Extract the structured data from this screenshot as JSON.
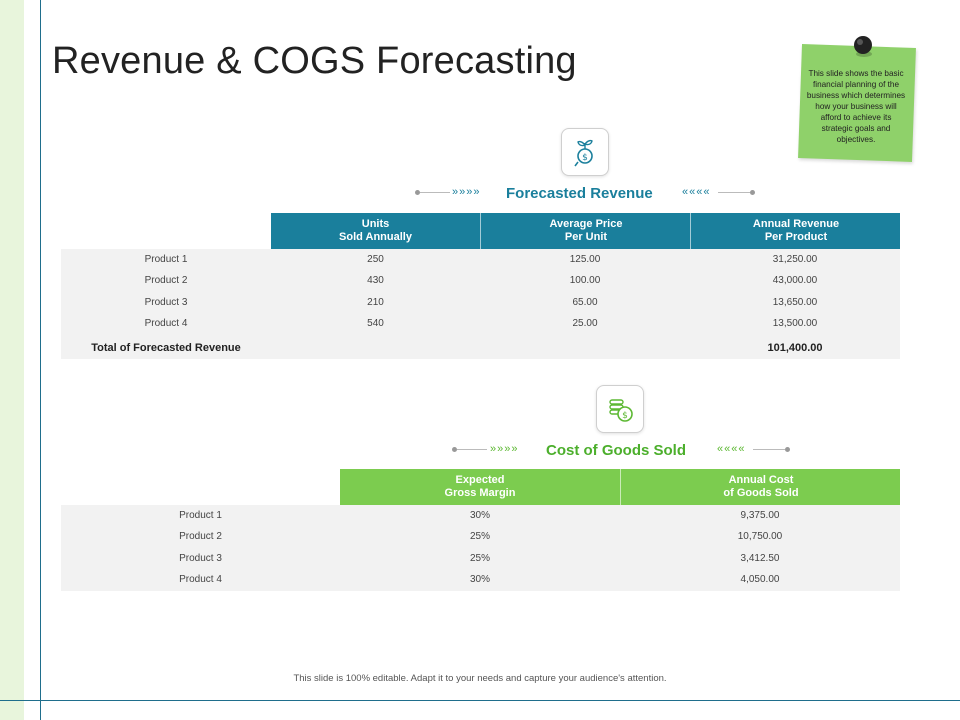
{
  "title": "Revenue & COGS Forecasting",
  "note": {
    "text": "This slide shows the basic financial planning of the business which determines how your business will afford to achieve its strategic goals and objectives.",
    "color": "#8fd16a"
  },
  "revenue": {
    "heading": "Forecasted Revenue",
    "icon": "money-plant-icon",
    "accent": "#1a7f9c",
    "arrows_left": "»»»»",
    "arrows_right": "««««",
    "columns": [
      "Units\nSold Annually",
      "Average Price\nPer Unit",
      "Annual Revenue\nPer Product"
    ],
    "rows": [
      {
        "product": "Product 1",
        "units": "250",
        "price": "125.00",
        "revenue": "31,250.00"
      },
      {
        "product": "Product 2",
        "units": "430",
        "price": "100.00",
        "revenue": "43,000.00"
      },
      {
        "product": "Product 3",
        "units": "210",
        "price": "65.00",
        "revenue": "13,650.00"
      },
      {
        "product": "Product 4",
        "units": "540",
        "price": "25.00",
        "revenue": "13,500.00"
      }
    ],
    "total_label": "Total of Forecasted Revenue",
    "total_value": "101,400.00"
  },
  "cogs": {
    "heading": "Cost of Goods Sold",
    "icon": "coins-icon",
    "accent": "#7ccc4f",
    "heading_color": "#4caf2c",
    "arrows_left": "»»»»",
    "arrows_right": "««««",
    "columns": [
      "Expected\nGross Margin",
      "Annual Cost\nof Goods Sold"
    ],
    "rows": [
      {
        "product": "Product 1",
        "margin": "30%",
        "cost": "9,375.00"
      },
      {
        "product": "Product 2",
        "margin": "25%",
        "cost": "10,750.00"
      },
      {
        "product": "Product 3",
        "margin": "25%",
        "cost": "3,412.50"
      },
      {
        "product": "Product 4",
        "margin": "30%",
        "cost": "4,050.00"
      }
    ]
  },
  "footer": "This slide is 100% editable. Adapt it to your needs and capture your audience's attention."
}
